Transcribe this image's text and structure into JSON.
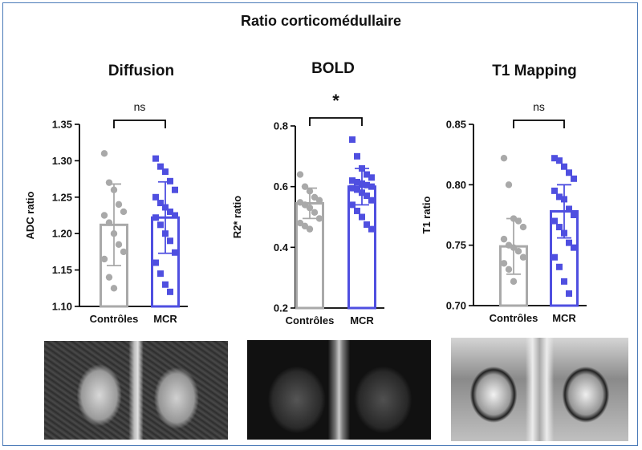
{
  "figure_title": "Ratio corticomédullaire",
  "colors": {
    "controls": "#a9a9a9",
    "mcr": "#4f4fe0",
    "axis": "#000000"
  },
  "chart_data": [
    {
      "type": "bar",
      "title": "Diffusion",
      "ylabel": "ADC ratio",
      "categories": [
        "Contrôles",
        "MCR"
      ],
      "ylim": [
        1.1,
        1.35
      ],
      "yticks": [
        "1.10",
        "1.15",
        "1.20",
        "1.25",
        "1.30",
        "1.35"
      ],
      "values": [
        1.212,
        1.222
      ],
      "sd": [
        0.056,
        0.049
      ],
      "significance": "ns",
      "points": [
        [
          1.31,
          1.27,
          1.26,
          1.24,
          1.23,
          1.225,
          1.215,
          1.2,
          1.185,
          1.175,
          1.165,
          1.14,
          1.125
        ],
        [
          1.303,
          1.292,
          1.285,
          1.272,
          1.26,
          1.25,
          1.242,
          1.236,
          1.23,
          1.225,
          1.222,
          1.212,
          1.2,
          1.19,
          1.174,
          1.16,
          1.145,
          1.13,
          1.12
        ]
      ]
    },
    {
      "type": "bar",
      "title": "BOLD",
      "ylabel": "R2* ratio",
      "categories": [
        "Contrôles",
        "MCR"
      ],
      "ylim": [
        0.2,
        0.8
      ],
      "yticks": [
        "0.2",
        "0.4",
        "0.6",
        "0.8"
      ],
      "values": [
        0.545,
        0.6
      ],
      "sd": [
        0.05,
        0.06
      ],
      "significance": "*",
      "points": [
        [
          0.64,
          0.6,
          0.585,
          0.565,
          0.555,
          0.548,
          0.54,
          0.53,
          0.515,
          0.495,
          0.48,
          0.47,
          0.46
        ],
        [
          0.755,
          0.7,
          0.66,
          0.64,
          0.63,
          0.62,
          0.615,
          0.61,
          0.605,
          0.6,
          0.595,
          0.59,
          0.58,
          0.57,
          0.555,
          0.54,
          0.52,
          0.5,
          0.475,
          0.46
        ]
      ]
    },
    {
      "type": "bar",
      "title": "T1 Mapping",
      "ylabel": "T1 ratio",
      "categories": [
        "Contrôles",
        "MCR"
      ],
      "ylim": [
        0.7,
        0.85
      ],
      "yticks": [
        "0.70",
        "0.75",
        "0.80",
        "0.85"
      ],
      "values": [
        0.749,
        0.778
      ],
      "sd": [
        0.023,
        0.022
      ],
      "significance": "ns",
      "points": [
        [
          0.822,
          0.8,
          0.772,
          0.77,
          0.765,
          0.755,
          0.75,
          0.748,
          0.745,
          0.74,
          0.735,
          0.73,
          0.72
        ],
        [
          0.822,
          0.82,
          0.815,
          0.81,
          0.805,
          0.795,
          0.79,
          0.788,
          0.78,
          0.775,
          0.77,
          0.765,
          0.76,
          0.752,
          0.748,
          0.74,
          0.732,
          0.72,
          0.71
        ]
      ]
    }
  ]
}
